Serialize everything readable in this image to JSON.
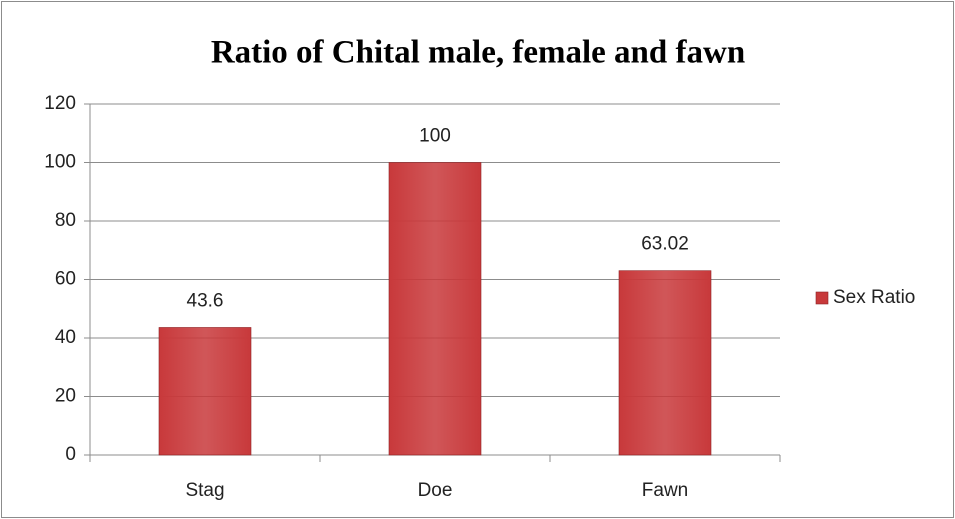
{
  "chart_data": {
    "type": "bar",
    "title": "Ratio of Chital male, female and fawn",
    "categories": [
      "Stag",
      "Doe",
      "Fawn"
    ],
    "series": [
      {
        "name": "Sex Ratio",
        "color": "#c8393b",
        "values": [
          43.6,
          100,
          63.02
        ]
      }
    ],
    "ylim": [
      0,
      120
    ],
    "yticks": [
      0,
      20,
      40,
      60,
      80,
      100,
      120
    ],
    "grid": true,
    "legend": "right"
  }
}
